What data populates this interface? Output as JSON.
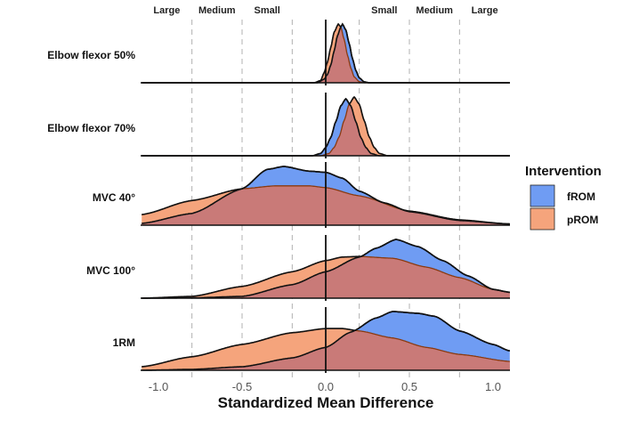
{
  "chart_data": {
    "type": "ridgeline-density",
    "xlabel": "Standardized Mean Difference",
    "xlim": [
      -1.1,
      1.1
    ],
    "xticks": [
      -1.0,
      -0.5,
      0.0,
      0.5,
      1.0
    ],
    "xtick_labels": [
      "-1.0",
      "-0.5",
      "0.0",
      "0.5",
      "1.0"
    ],
    "reference_lines": {
      "solid": [
        0.0
      ],
      "dashed": [
        -0.8,
        -0.5,
        -0.2,
        0.2,
        0.5,
        0.8
      ]
    },
    "effect_size_labels": [
      {
        "label": "Large",
        "x": -0.95
      },
      {
        "label": "Medium",
        "x": -0.65
      },
      {
        "label": "Small",
        "x": -0.35
      },
      {
        "label": "Small",
        "x": 0.35
      },
      {
        "label": "Medium",
        "x": 0.65
      },
      {
        "label": "Large",
        "x": 0.95
      }
    ],
    "legend": {
      "title": "Intervention",
      "position": "right",
      "entries": [
        "fROM",
        "pROM"
      ]
    },
    "colors": {
      "fROM": "#6f9cf3",
      "pROM": "#f5a47c",
      "overlap": "#c97a78"
    },
    "rows": [
      {
        "label": "Elbow flexor 50%",
        "fROM": [
          [
            -0.05,
            0
          ],
          [
            -0.01,
            0.06
          ],
          [
            0.01,
            0.14
          ],
          [
            0.03,
            0.3
          ],
          [
            0.05,
            0.54
          ],
          [
            0.07,
            0.8
          ],
          [
            0.09,
            0.95
          ],
          [
            0.1,
            1
          ],
          [
            0.12,
            0.9
          ],
          [
            0.14,
            0.67
          ],
          [
            0.16,
            0.41
          ],
          [
            0.18,
            0.21
          ],
          [
            0.2,
            0.085
          ],
          [
            0.23,
            0.015
          ],
          [
            0.26,
            0
          ]
        ],
        "pROM": [
          [
            -0.07,
            0
          ],
          [
            -0.03,
            0.04
          ],
          [
            -0.01,
            0.17
          ],
          [
            0.01,
            0.35
          ],
          [
            0.03,
            0.6
          ],
          [
            0.05,
            0.86
          ],
          [
            0.075,
            1
          ],
          [
            0.09,
            0.95
          ],
          [
            0.11,
            0.74
          ],
          [
            0.13,
            0.47
          ],
          [
            0.15,
            0.25
          ],
          [
            0.17,
            0.1
          ],
          [
            0.2,
            0.02
          ],
          [
            0.23,
            0
          ]
        ]
      },
      {
        "label": "Elbow flexor 70%",
        "fROM": [
          [
            -0.08,
            0
          ],
          [
            -0.03,
            0.04
          ],
          [
            0,
            0.14
          ],
          [
            0.03,
            0.31
          ],
          [
            0.06,
            0.58
          ],
          [
            0.09,
            0.85
          ],
          [
            0.12,
            0.97
          ],
          [
            0.15,
            0.85
          ],
          [
            0.18,
            0.58
          ],
          [
            0.21,
            0.31
          ],
          [
            0.24,
            0.14
          ],
          [
            0.27,
            0.04
          ],
          [
            0.32,
            0
          ]
        ],
        "pROM": [
          [
            -0.03,
            0
          ],
          [
            0.02,
            0.04
          ],
          [
            0.05,
            0.14
          ],
          [
            0.08,
            0.32
          ],
          [
            0.11,
            0.6
          ],
          [
            0.14,
            0.88
          ],
          [
            0.17,
            1
          ],
          [
            0.2,
            0.88
          ],
          [
            0.23,
            0.6
          ],
          [
            0.26,
            0.32
          ],
          [
            0.29,
            0.14
          ],
          [
            0.32,
            0.04
          ],
          [
            0.37,
            0
          ]
        ]
      },
      {
        "label": "MVC 40°",
        "fROM": [
          [
            -1.1,
            0.03
          ],
          [
            -0.8,
            0.2
          ],
          [
            -0.5,
            0.62
          ],
          [
            -0.35,
            0.95
          ],
          [
            -0.25,
            1
          ],
          [
            -0.1,
            0.92
          ],
          [
            0,
            0.9
          ],
          [
            0.1,
            0.8
          ],
          [
            0.2,
            0.58
          ],
          [
            0.35,
            0.38
          ],
          [
            0.5,
            0.23
          ],
          [
            0.8,
            0.08
          ],
          [
            1.1,
            0.02
          ]
        ],
        "pROM": [
          [
            -1.1,
            0.18
          ],
          [
            -0.8,
            0.42
          ],
          [
            -0.5,
            0.62
          ],
          [
            -0.3,
            0.67
          ],
          [
            -0.1,
            0.67
          ],
          [
            0,
            0.64
          ],
          [
            0.2,
            0.5
          ],
          [
            0.5,
            0.24
          ],
          [
            0.8,
            0.09
          ],
          [
            1.1,
            0.02
          ]
        ]
      },
      {
        "label": "MVC 100°",
        "fROM": [
          [
            -1.1,
            0
          ],
          [
            -0.8,
            0.005
          ],
          [
            -0.5,
            0.03
          ],
          [
            -0.2,
            0.23
          ],
          [
            0,
            0.45
          ],
          [
            0.2,
            0.7
          ],
          [
            0.3,
            0.85
          ],
          [
            0.42,
            1
          ],
          [
            0.55,
            0.88
          ],
          [
            0.7,
            0.64
          ],
          [
            0.85,
            0.38
          ],
          [
            1,
            0.15
          ],
          [
            1.1,
            0.1
          ]
        ],
        "pROM": [
          [
            -1.1,
            0
          ],
          [
            -0.8,
            0.03
          ],
          [
            -0.5,
            0.2
          ],
          [
            -0.2,
            0.45
          ],
          [
            0,
            0.64
          ],
          [
            0.1,
            0.7
          ],
          [
            0.2,
            0.71
          ],
          [
            0.4,
            0.68
          ],
          [
            0.6,
            0.53
          ],
          [
            0.8,
            0.35
          ],
          [
            1,
            0.15
          ],
          [
            1.1,
            0.1
          ]
        ]
      },
      {
        "label": "1RM",
        "fROM": [
          [
            -1.1,
            0
          ],
          [
            -0.8,
            0.015
          ],
          [
            -0.5,
            0.06
          ],
          [
            -0.2,
            0.21
          ],
          [
            0,
            0.39
          ],
          [
            0.15,
            0.65
          ],
          [
            0.3,
            0.89
          ],
          [
            0.4,
            1
          ],
          [
            0.55,
            0.97
          ],
          [
            0.65,
            0.92
          ],
          [
            0.8,
            0.67
          ],
          [
            1,
            0.44
          ],
          [
            1.1,
            0.33
          ]
        ],
        "pROM": [
          [
            -1.1,
            0.06
          ],
          [
            -0.8,
            0.23
          ],
          [
            -0.5,
            0.44
          ],
          [
            -0.2,
            0.64
          ],
          [
            0,
            0.71
          ],
          [
            0.1,
            0.71
          ],
          [
            0.2,
            0.67
          ],
          [
            0.4,
            0.55
          ],
          [
            0.6,
            0.39
          ],
          [
            0.8,
            0.27
          ],
          [
            1.1,
            0.15
          ]
        ]
      }
    ]
  }
}
